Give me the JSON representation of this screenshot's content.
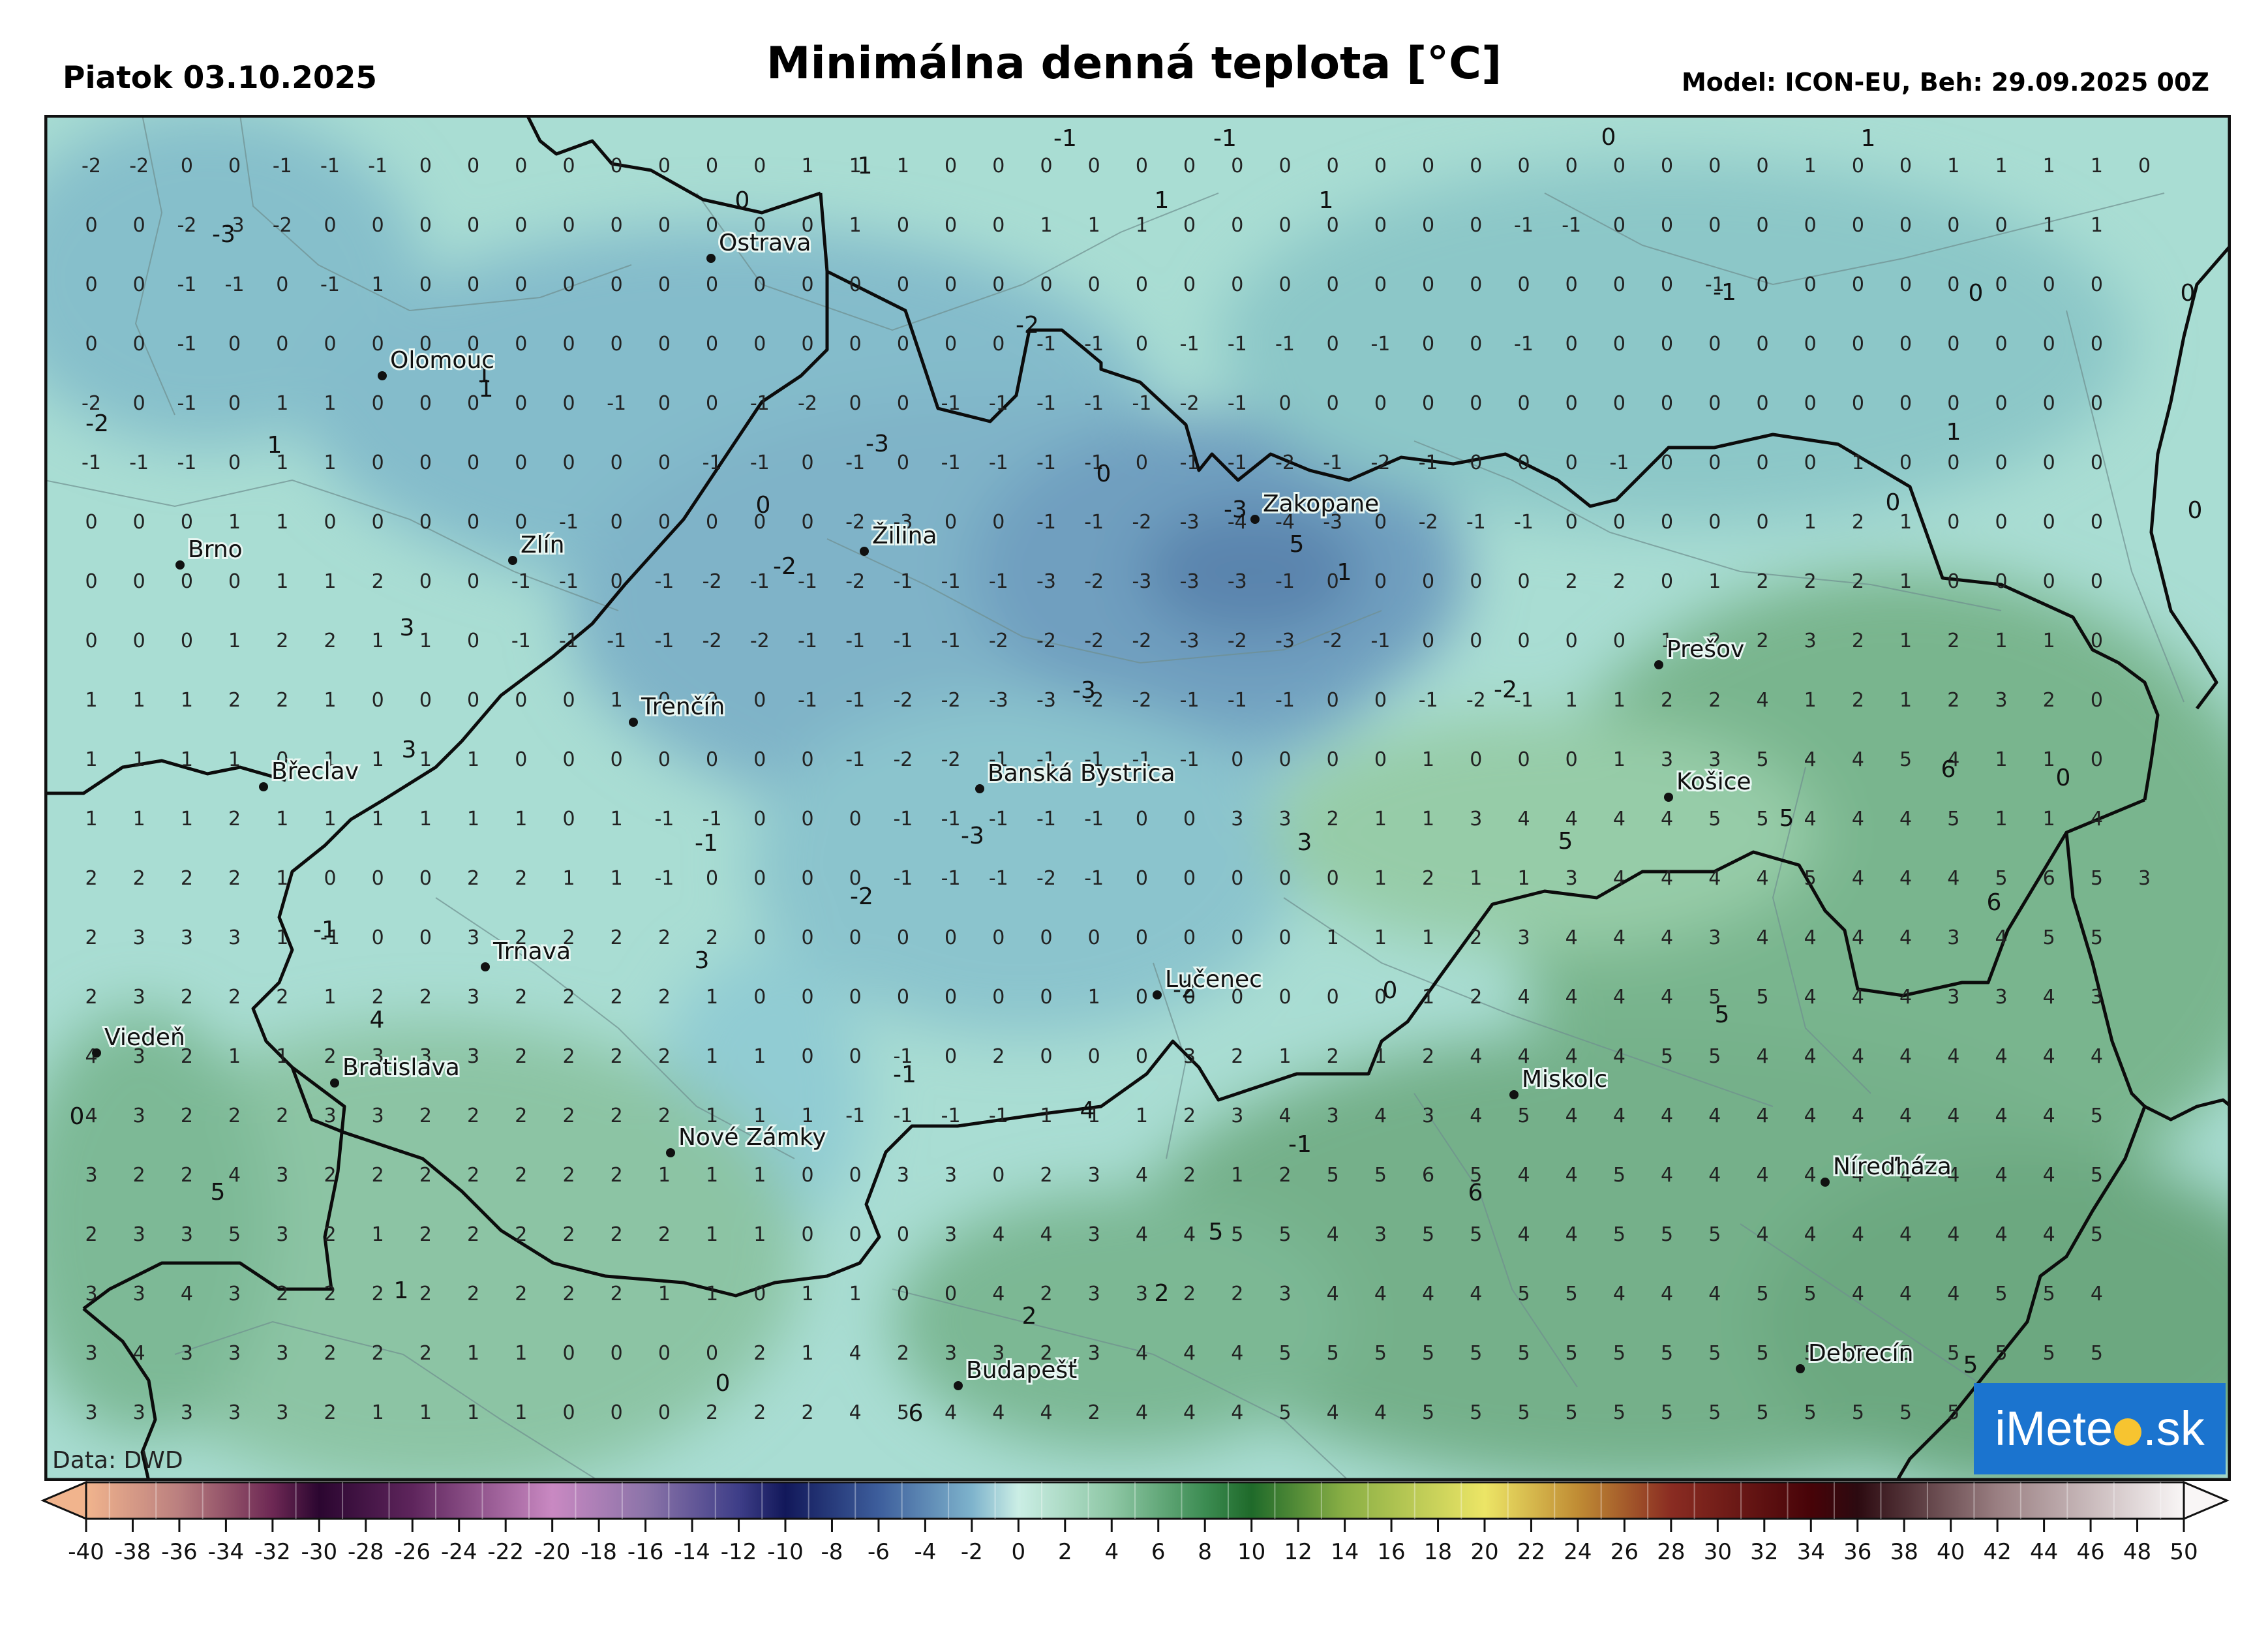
{
  "header": {
    "date": "Piatok 03.10.2025",
    "title": "Minimálna denná teplota [°C]",
    "model": "Model: ICON-EU, Beh: 29.09.2025 00Z"
  },
  "map": {
    "source": "Data: DWD",
    "logo": {
      "prefix": "iMete",
      "suffix": ".sk"
    },
    "cities": [
      {
        "name": "Ostrava"
      },
      {
        "name": "Olomouc"
      },
      {
        "name": "Brno"
      },
      {
        "name": "Zlín"
      },
      {
        "name": "Žilina"
      },
      {
        "name": "Zakopane"
      },
      {
        "name": "Trenčín"
      },
      {
        "name": "Prešov"
      },
      {
        "name": "Břeclav"
      },
      {
        "name": "Banská Bystrica"
      },
      {
        "name": "Košice"
      },
      {
        "name": "Trnava"
      },
      {
        "name": "Lučenec"
      },
      {
        "name": "Viedeň"
      },
      {
        "name": "Bratislava"
      },
      {
        "name": "Miskolc"
      },
      {
        "name": "Nové Zámky"
      },
      {
        "name": "Níreďháza"
      },
      {
        "name": "Budapešť"
      },
      {
        "name": "Debrecín"
      }
    ],
    "grid_rows": [
      "-2 -2 0 0 -1 -1 -1 0 0 0 0 0 0 0 0 1 1 1 0 0 0 0 0 0 0 0 0 0 0 0 0 0 0 0 0 0 1 0 0 1 1 1 1 0",
      "0 0 -2 -3 -2 0 0 0 0 0 0 0 0 0 0 0 1 0 0 0 1 1 1 0 0 0 0 0 0 0 -1 -1 0 0 0 0 0 0 0 0 0 1 1",
      "0 0 -1 -1 0 -1 1 0 0 0 0 0 0 0 0 0 0 0 0 0 0 0 0 0 0 0 0 0 0 0 0 0 0 0 -1 0 0 0 0 0 0 0 0",
      "0 0 -1 0 0 0 0 0 0 0 0 0 0 0 0 0 0 0 0 0 -1 -1 0 -1 -1 -1 0 -1 0 0 -1 0 0 0 0 0 0 0 0 0 0 0 0",
      "-2 0 -1 0 1 1 0 0 0 0 0 -1 0 0 -1 -2 0 0 -1 -1 -1 -1 -1 -2 -1 0 0 0 0 0 0 0 0 0 0 0 0 0 0 0 0 0 0",
      "-1 -1 -1 0 1 1 0 0 0 0 0 0 0 -1 -1 0 -1 0 -1 -1 -1 -1 0 -1 -1 -2 -1 -2 -1 0 0 0 -1 0 0 0 0 1 0 0 0 0 0",
      "0 0 0 1 1 0 0 0 0 0 -1 0 0 0 0 0 -2 -3 0 0 -1 -1 -2 -3 -4 -4 -3 0 -2 -1 -1 0 0 0 0 0 1 2 1 0 0 0 0",
      "0 0 0 0 1 1 2 0 0 -1 -1 0 -1 -2 -1 -1 -2 -1 -1 -1 -3 -2 -3 -3 -3 -1 0 0 0 0 0 2 2 0 1 2 2 2 1 0 0 0 0",
      "0 0 0 1 2 2 1 1 0 -1 -1 -1 -1 -2 -2 -1 -1 -1 -1 -2 -2 -2 -2 -3 -2 -3 -2 -1 0 0 0 0 0 1 2 2 3 2 1 2 1 1 0",
      "1 1 1 2 2 1 0 0 0 0 0 1 0 0 0 -1 -1 -2 -2 -3 -3 -2 -2 -1 -1 -1 0 0 -1 -2 -1 1 1 2 2 4 1 2 1 2 3 2 0",
      "1 1 1 1 0 1 1 1 1 0 0 0 0 0 0 0 -1 -2 -2 -1 -1 -1 -1 -1 0 0 0 0 1 0 0 0 1 3 3 5 4 4 5 4 1 1 0",
      "1 1 1 2 1 1 1 1 1 1 0 1 -1 -1 0 0 0 -1 -1 -1 -1 -1 0 0 3 3 2 1 1 3 4 4 4 4 5 5 4 4 4 5 1 1 4",
      "2 2 2 2 1 0 0 0 2 2 1 1 -1 0 0 0 0 -1 -1 -1 -2 -1 0 0 0 0 0 1 2 1 1 3 4 4 4 4 5 4 4 4 5 6 5 3",
      "2 3 3 3 1 -1 0 0 3 2 2 2 2 2 0 0 0 0 0 0 0 0 0 0 0 0 1 1 1 2 3 4 4 4 3 4 4 4 4 3 4 5 5",
      "2 3 2 2 2 1 2 2 3 2 2 2 2 1 0 0 0 0 0 0 0 1 0 0 0 0 0 0 1 2 4 4 4 4 5 5 4 4 4 3 3 4 3",
      "4 3 2 1 1 2 3 3 3 2 2 2 2 1 1 0 0 -1 0 2 0 0 0 3 2 1 2 1 2 4 4 4 4 5 5 4 4 4 4 4 4 4 4",
      "4 3 2 2 2 3 3 2 2 2 2 2 2 1 1 1 -1 -1 -1 -1 1 1 1 2 3 4 3 4 3 4 5 4 4 4 4 4 4 4 4 4 4 4 5",
      "3 2 2 4 3 2 2 2 2 2 2 2 1 1 1 0 0 3 3 0 2 3 4 2 1 2 5 5 6 5 4 4 5 4 4 4 4 4 4 4 4 4 5",
      "2 3 3 5 3 2 1 2 2 2 2 2 2 1 1 0 0 0 3 4 4 3 4 4 5 5 4 3 5 5 4 4 5 5 5 4 4 4 4 4 4 4 5",
      "3 3 4 3 2 2 2 2 2 2 2 2 1 1 0 1 1 0 0 4 2 3 3 2 2 3 4 4 4 4 5 5 4 4 4 5 5 4 4 4 5 5 4",
      "3 4 3 3 3 2 2 2 1 1 0 0 0 0 2 1 4 2 3 3 2 3 4 4 4 5 5 5 5 5 5 5 5 5 5 5 5 5 5 5 5 5 5",
      "3 3 3 3 3 2 1 1 1 1 0 0 0 2 2 2 4 5 4 4 4 2 4 4 4 5 4 4 5 5 5 5 5 5 5 5 5 5 5 5 5 5 5"
    ],
    "highlights": [
      {
        "t": "-1"
      },
      {
        "t": "-1"
      },
      {
        "t": "0"
      },
      {
        "t": "1"
      },
      {
        "t": "1"
      },
      {
        "t": "1"
      },
      {
        "t": "1"
      },
      {
        "t": "0"
      },
      {
        "t": "-3"
      },
      {
        "t": "1"
      },
      {
        "t": "1"
      },
      {
        "t": "-1"
      },
      {
        "t": "0"
      },
      {
        "t": "-2"
      },
      {
        "t": "0"
      },
      {
        "t": "1"
      },
      {
        "t": "-2"
      },
      {
        "t": "1"
      },
      {
        "t": "-3"
      },
      {
        "t": "0"
      },
      {
        "t": "0"
      },
      {
        "t": "-3"
      },
      {
        "t": "5"
      },
      {
        "t": "0"
      },
      {
        "t": "-2"
      },
      {
        "t": "1"
      },
      {
        "t": "3"
      },
      {
        "t": "0"
      },
      {
        "t": "3"
      },
      {
        "t": "-2"
      },
      {
        "t": "-3"
      },
      {
        "t": "3"
      },
      {
        "t": "6"
      },
      {
        "t": "-1"
      },
      {
        "t": "0"
      },
      {
        "t": "-3"
      },
      {
        "t": "5"
      },
      {
        "t": "5"
      },
      {
        "t": "-2"
      },
      {
        "t": "3"
      },
      {
        "t": "6"
      },
      {
        "t": "-1"
      },
      {
        "t": "-2"
      },
      {
        "t": "0"
      },
      {
        "t": "5"
      },
      {
        "t": "4"
      },
      {
        "t": "-1"
      },
      {
        "t": "4"
      },
      {
        "t": "-1"
      },
      {
        "t": "0"
      },
      {
        "t": "5"
      },
      {
        "t": "6"
      },
      {
        "t": "5"
      },
      {
        "t": "1"
      },
      {
        "t": "2"
      },
      {
        "t": "2"
      },
      {
        "t": "0"
      },
      {
        "t": "6"
      },
      {
        "t": "5"
      }
    ]
  },
  "colorbar": {
    "ticks": [
      "-40",
      "-38",
      "-36",
      "-34",
      "-32",
      "-30",
      "-28",
      "-26",
      "-24",
      "-22",
      "-20",
      "-18",
      "-16",
      "-14",
      "-12",
      "-10",
      "-8",
      "-6",
      "-4",
      "-2",
      "0",
      "2",
      "4",
      "6",
      "8",
      "10",
      "12",
      "14",
      "16",
      "18",
      "20",
      "22",
      "24",
      "26",
      "28",
      "30",
      "32",
      "34",
      "36",
      "38",
      "40",
      "42",
      "44",
      "46",
      "48",
      "50"
    ],
    "stops": [
      {
        "v": -40,
        "c": "#f1b48d"
      },
      {
        "v": -36,
        "c": "#ba7f7f"
      },
      {
        "v": -32,
        "c": "#6d2854"
      },
      {
        "v": -30,
        "c": "#2b0630"
      },
      {
        "v": -26,
        "c": "#5e255c"
      },
      {
        "v": -20,
        "c": "#c989c2"
      },
      {
        "v": -16,
        "c": "#8c74a9"
      },
      {
        "v": -12,
        "c": "#3e3e88"
      },
      {
        "v": -10,
        "c": "#12185a"
      },
      {
        "v": -6,
        "c": "#3d5e9c"
      },
      {
        "v": -2,
        "c": "#7eb3cc"
      },
      {
        "v": 0,
        "c": "#cbeee5"
      },
      {
        "v": 4,
        "c": "#8ec7a5"
      },
      {
        "v": 8,
        "c": "#3c8c52"
      },
      {
        "v": 10,
        "c": "#1f6a2a"
      },
      {
        "v": 14,
        "c": "#8aaf45"
      },
      {
        "v": 20,
        "c": "#ece566"
      },
      {
        "v": 24,
        "c": "#c08c34"
      },
      {
        "v": 28,
        "c": "#8a2c22"
      },
      {
        "v": 34,
        "c": "#470308"
      },
      {
        "v": 36,
        "c": "#2c0a10"
      },
      {
        "v": 42,
        "c": "#9a7f82"
      },
      {
        "v": 50,
        "c": "#f9f6f6"
      }
    ]
  }
}
